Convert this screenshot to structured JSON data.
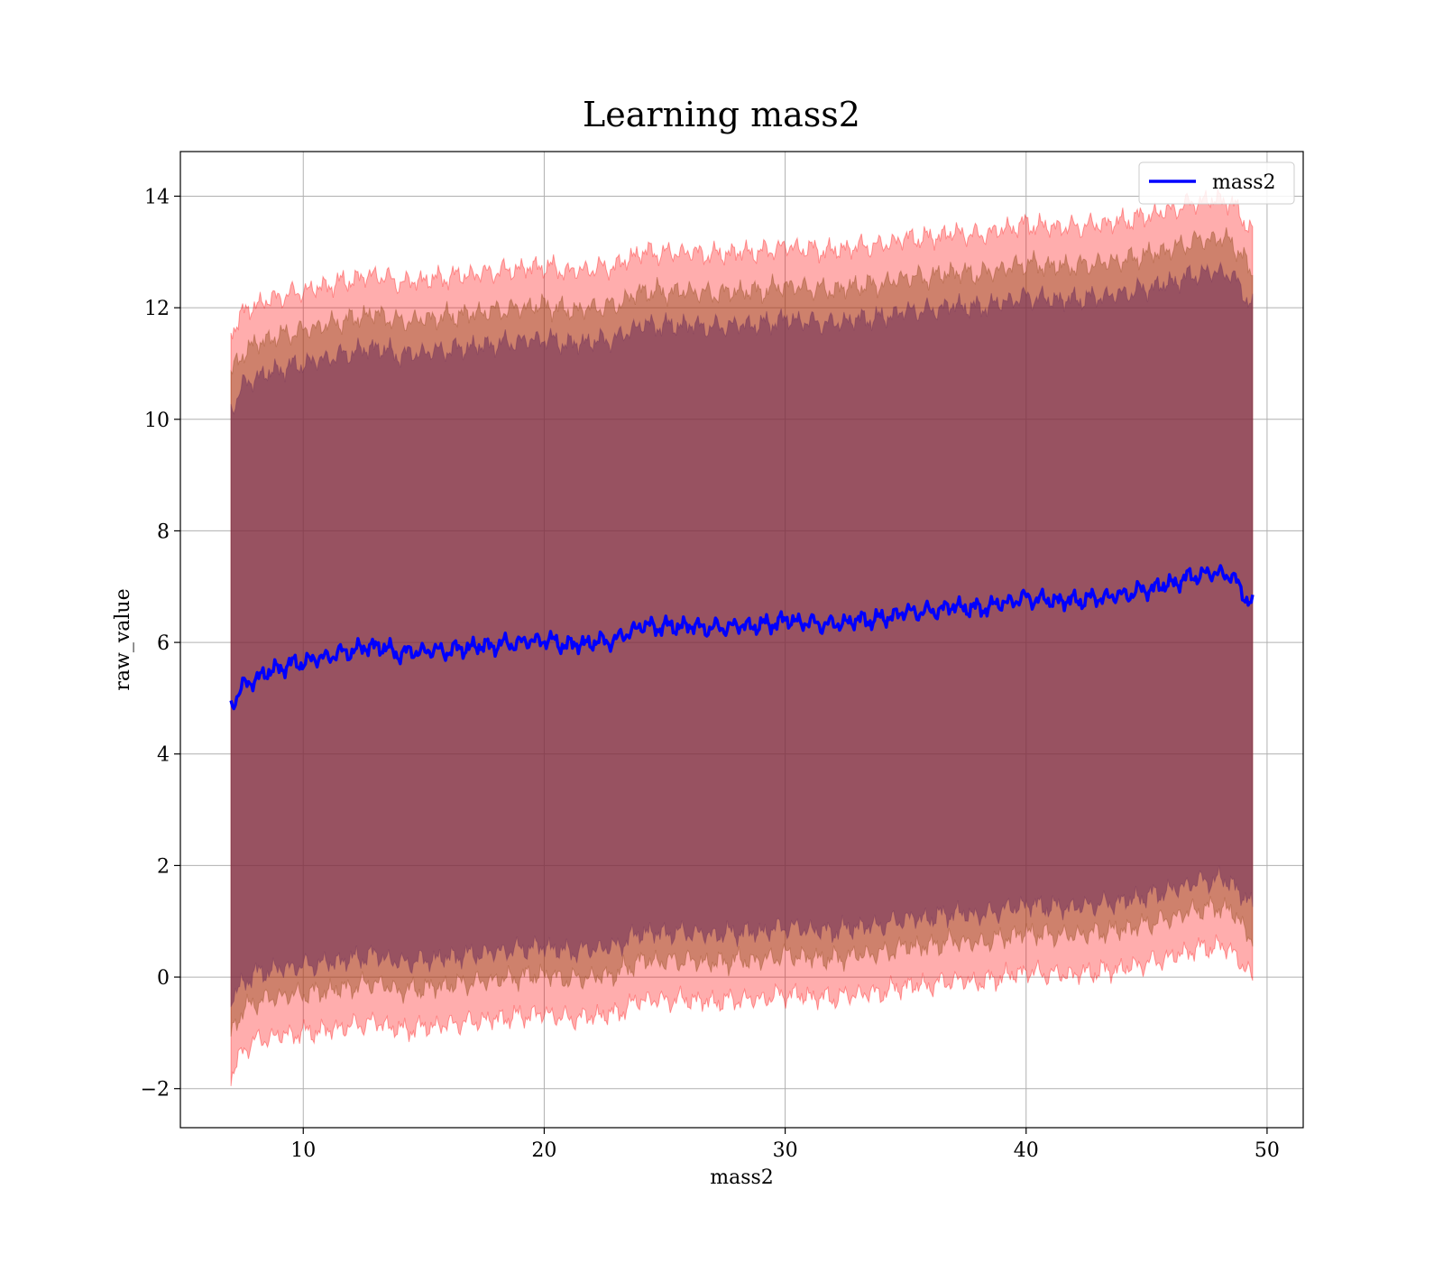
{
  "chart_data": {
    "type": "line",
    "title": "Learning mass2",
    "xlabel": "mass2",
    "ylabel": "raw_value",
    "xlim": [
      4.9,
      51.5
    ],
    "ylim": [
      -2.7,
      14.8
    ],
    "xticks": [
      10,
      20,
      30,
      40,
      50
    ],
    "yticks": [
      -2,
      0,
      2,
      4,
      6,
      8,
      10,
      12,
      14
    ],
    "xtick_labels": [
      "10",
      "20",
      "30",
      "40",
      "50"
    ],
    "ytick_labels": [
      "−2",
      "0",
      "2",
      "4",
      "6",
      "8",
      "10",
      "12",
      "14"
    ],
    "grid": true,
    "legend_position": "top-right",
    "colors": {
      "line": "#0000ff",
      "band_outer": "#ff0000",
      "band_middle": "#8b4513",
      "band_inner": "#6b2c5a"
    },
    "series": [
      {
        "name": "mass2",
        "x": [
          7,
          7.5,
          8,
          9,
          10,
          11,
          12,
          13,
          14,
          15,
          16,
          17,
          18,
          19,
          20,
          21,
          22,
          23,
          24,
          25,
          26,
          27,
          28,
          29,
          30,
          31,
          32,
          33,
          34,
          35,
          36,
          37,
          38,
          39,
          40,
          41,
          42,
          43,
          44,
          45,
          46,
          47,
          48,
          48.5,
          49,
          49.4
        ],
        "y": [
          4.9,
          5.2,
          5.35,
          5.55,
          5.65,
          5.75,
          5.85,
          5.95,
          5.8,
          5.85,
          5.85,
          5.92,
          5.95,
          6.0,
          6.05,
          5.95,
          6.0,
          6.05,
          6.3,
          6.28,
          6.3,
          6.25,
          6.3,
          6.3,
          6.4,
          6.35,
          6.32,
          6.4,
          6.42,
          6.55,
          6.55,
          6.65,
          6.6,
          6.7,
          6.8,
          6.75,
          6.75,
          6.8,
          6.85,
          6.95,
          7.05,
          7.2,
          7.25,
          7.2,
          6.9,
          6.65
        ]
      }
    ],
    "bands": [
      {
        "level": "outer",
        "lower": [
          -1.8,
          -1.3,
          -1.15,
          -1.05,
          -1.0,
          -0.95,
          -0.88,
          -0.8,
          -0.95,
          -0.9,
          -0.85,
          -0.8,
          -0.75,
          -0.7,
          -0.65,
          -0.75,
          -0.7,
          -0.65,
          -0.4,
          -0.42,
          -0.4,
          -0.45,
          -0.4,
          -0.4,
          -0.3,
          -0.35,
          -0.38,
          -0.3,
          -0.28,
          -0.15,
          -0.15,
          -0.05,
          -0.1,
          0.0,
          0.1,
          0.05,
          0.05,
          0.1,
          0.15,
          0.25,
          0.35,
          0.5,
          0.55,
          0.5,
          0.2,
          -0.05
        ],
        "upper": [
          11.6,
          11.9,
          12.05,
          12.2,
          12.3,
          12.4,
          12.5,
          12.6,
          12.45,
          12.5,
          12.55,
          12.6,
          12.65,
          12.7,
          12.75,
          12.65,
          12.7,
          12.75,
          13.0,
          12.98,
          13.0,
          12.95,
          13.0,
          13.0,
          13.1,
          13.05,
          13.02,
          13.1,
          13.12,
          13.25,
          13.25,
          13.35,
          13.3,
          13.4,
          13.5,
          13.45,
          13.45,
          13.5,
          13.55,
          13.65,
          13.75,
          13.9,
          13.95,
          13.9,
          13.6,
          13.35
        ]
      },
      {
        "level": "middle",
        "lower": [
          -1.0,
          -0.6,
          -0.45,
          -0.35,
          -0.3,
          -0.25,
          -0.18,
          -0.1,
          -0.25,
          -0.2,
          -0.15,
          -0.1,
          -0.05,
          0.0,
          0.05,
          -0.05,
          0.0,
          0.05,
          0.3,
          0.28,
          0.3,
          0.25,
          0.3,
          0.3,
          0.4,
          0.35,
          0.32,
          0.4,
          0.42,
          0.55,
          0.55,
          0.65,
          0.6,
          0.7,
          0.8,
          0.75,
          0.75,
          0.8,
          0.85,
          0.95,
          1.05,
          1.2,
          1.25,
          1.2,
          0.9,
          0.7
        ],
        "upper": [
          10.8,
          11.2,
          11.35,
          11.5,
          11.6,
          11.7,
          11.8,
          11.9,
          11.75,
          11.8,
          11.85,
          11.9,
          11.95,
          12.0,
          12.05,
          11.95,
          12.0,
          12.05,
          12.3,
          12.28,
          12.3,
          12.25,
          12.3,
          12.3,
          12.4,
          12.35,
          12.32,
          12.4,
          12.42,
          12.55,
          12.55,
          12.65,
          12.6,
          12.7,
          12.8,
          12.75,
          12.75,
          12.8,
          12.85,
          12.95,
          13.05,
          13.2,
          13.25,
          13.2,
          12.9,
          12.6
        ]
      },
      {
        "level": "inner",
        "lower": [
          -0.4,
          -0.1,
          0.05,
          0.15,
          0.2,
          0.25,
          0.32,
          0.4,
          0.25,
          0.3,
          0.35,
          0.4,
          0.45,
          0.5,
          0.55,
          0.45,
          0.5,
          0.55,
          0.8,
          0.78,
          0.8,
          0.75,
          0.8,
          0.8,
          0.9,
          0.85,
          0.82,
          0.9,
          0.92,
          1.05,
          1.05,
          1.15,
          1.1,
          1.2,
          1.3,
          1.25,
          1.25,
          1.3,
          1.35,
          1.45,
          1.55,
          1.7,
          1.75,
          1.7,
          1.45,
          1.25
        ],
        "upper": [
          10.2,
          10.6,
          10.75,
          10.9,
          11.0,
          11.1,
          11.2,
          11.3,
          11.15,
          11.2,
          11.25,
          11.3,
          11.35,
          11.4,
          11.45,
          11.35,
          11.4,
          11.45,
          11.7,
          11.68,
          11.7,
          11.65,
          11.7,
          11.7,
          11.8,
          11.75,
          11.72,
          11.8,
          11.82,
          11.95,
          11.95,
          12.05,
          12.0,
          12.1,
          12.2,
          12.15,
          12.15,
          12.2,
          12.25,
          12.35,
          12.45,
          12.6,
          12.65,
          12.6,
          12.3,
          12.0
        ]
      }
    ]
  }
}
